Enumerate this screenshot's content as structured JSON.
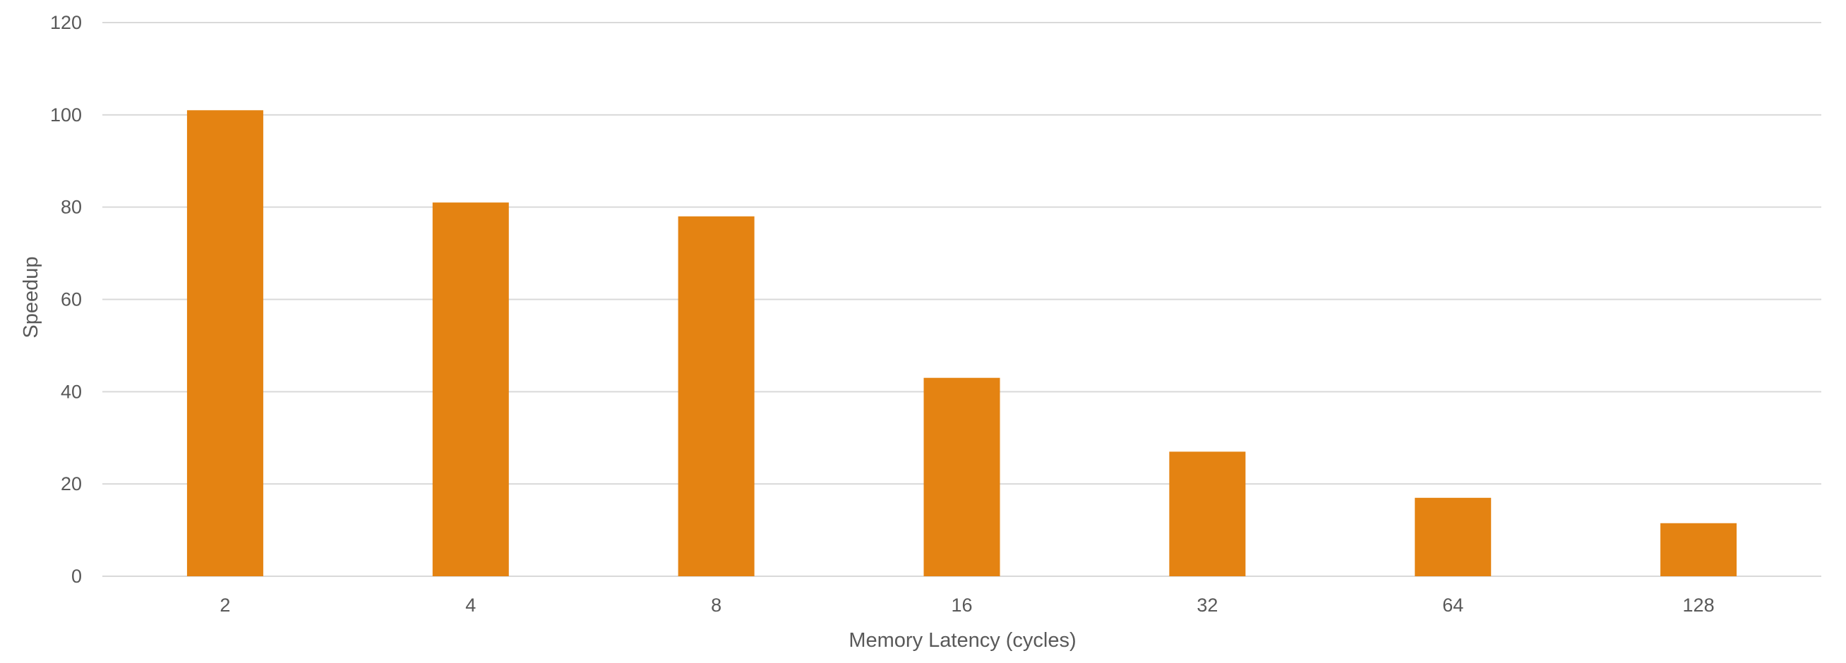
{
  "chart_data": {
    "type": "bar",
    "categories": [
      "2",
      "4",
      "8",
      "16",
      "32",
      "64",
      "128"
    ],
    "values": [
      101,
      81,
      78,
      43,
      27,
      17,
      11.5
    ],
    "title": "",
    "xlabel": "Memory Latency (cycles)",
    "ylabel": "Speedup",
    "ylim": [
      0,
      120
    ],
    "yticks": [
      0,
      20,
      40,
      60,
      80,
      100,
      120
    ],
    "ytick_labels": [
      "0",
      "20",
      "40",
      "60",
      "80",
      "100",
      "120"
    ],
    "grid": true,
    "legend": "none",
    "colors": {
      "bar": "#e48312",
      "grid": "#d9d9d9",
      "text": "#595959"
    }
  }
}
